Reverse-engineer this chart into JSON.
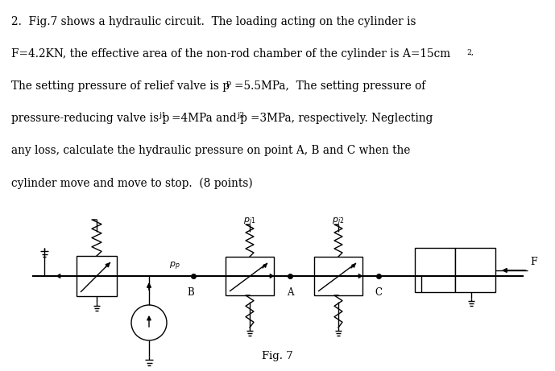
{
  "bg_color": "#ffffff",
  "line_color": "#000000",
  "lw": 1.0,
  "fig_caption": "Fig. 7",
  "text_lines": [
    "2.  Fig.7 shows a hydraulic circuit.  The loading acting on the cylinder is",
    "F=4.2KN, the effective area of the non-rod chamber of the cylinder is A=15cm",
    "The setting pressure of relief valve is p",
    "pressure-reducing valve is p",
    "any loss, calculate the hydraulic pressure on point A, B and C when the",
    "cylinder move and move to stop.  (8 points)"
  ]
}
